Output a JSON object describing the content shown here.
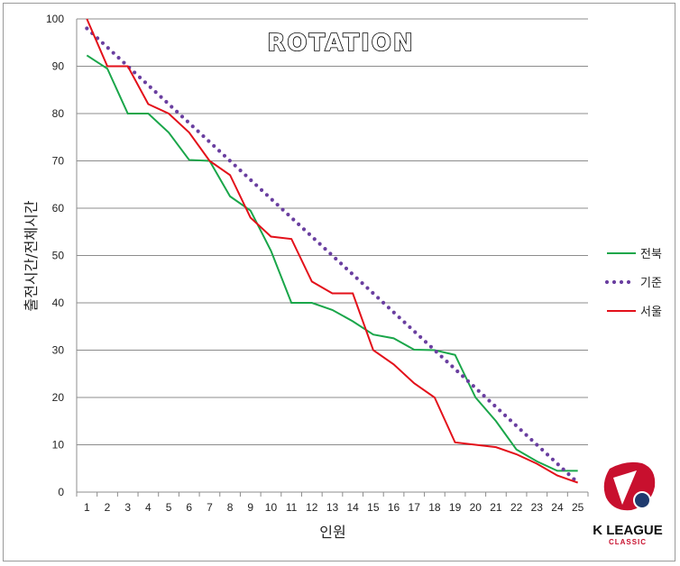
{
  "chart_data": {
    "type": "line",
    "title": "ROTATION",
    "xlabel": "인원",
    "ylabel": "출전시간/전체시간",
    "x": [
      1,
      2,
      3,
      4,
      5,
      6,
      7,
      8,
      9,
      10,
      11,
      12,
      13,
      14,
      15,
      16,
      17,
      18,
      19,
      20,
      21,
      22,
      23,
      24,
      25
    ],
    "xlim": [
      0.5,
      25.5
    ],
    "ylim": [
      0,
      100
    ],
    "yticks": [
      0,
      10,
      20,
      30,
      40,
      50,
      60,
      70,
      80,
      90,
      100
    ],
    "grid": true,
    "legend_position": "right",
    "series": [
      {
        "name": "전북",
        "color": "#1aa64a",
        "style": "solid",
        "values": [
          92.3,
          89.5,
          80,
          80,
          76,
          70.2,
          70,
          62.5,
          59.5,
          51,
          40,
          40,
          38.5,
          36.1,
          33.3,
          32.5,
          30.1,
          30,
          29,
          20,
          15,
          9,
          6.5,
          4.5,
          4.5
        ]
      },
      {
        "name": "기준",
        "color": "#6a3fa0",
        "style": "dotted",
        "values": [
          98,
          94,
          90,
          86,
          82,
          78,
          74,
          70,
          66,
          62,
          58,
          54,
          50,
          46,
          42,
          38,
          34,
          30,
          26,
          22,
          18,
          14,
          10,
          6,
          2
        ]
      },
      {
        "name": "서울",
        "color": "#e3101a",
        "style": "solid",
        "values": [
          100,
          90,
          90,
          82,
          80,
          76,
          70,
          67,
          58,
          54,
          53.5,
          44.5,
          42,
          42,
          30,
          27,
          23,
          20,
          10.5,
          10,
          9.5,
          8,
          6,
          3.5,
          2
        ]
      }
    ]
  },
  "logo": {
    "brand": "K LEAGUE",
    "sub": "CLASSIC",
    "colors": {
      "red": "#c8102e",
      "navy": "#1f3a6e"
    }
  }
}
